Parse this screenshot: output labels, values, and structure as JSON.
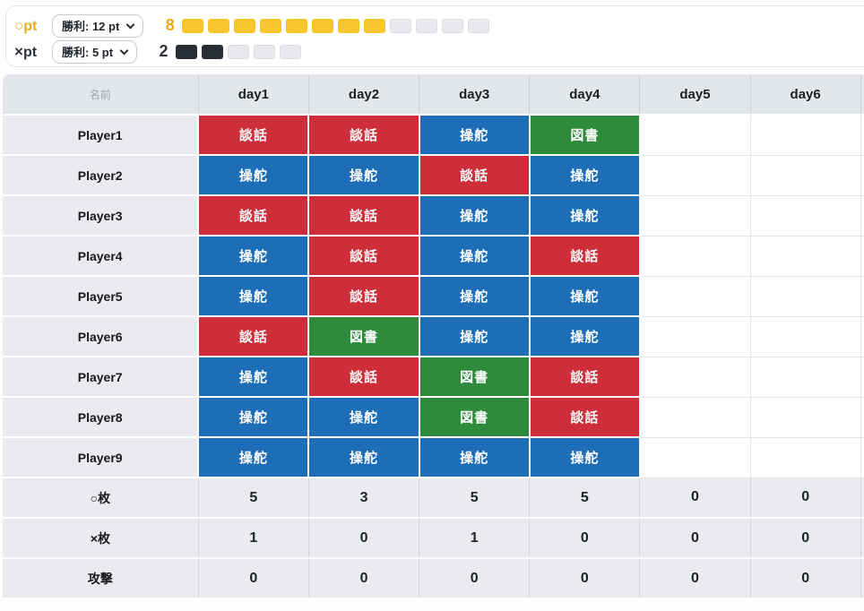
{
  "points_panel": {
    "rows": [
      {
        "symbol": "○",
        "label": "pt",
        "symbol_color": "#e9ab19",
        "select_value": "勝利: 12 pt",
        "count": "8",
        "count_color": "#e9ab19",
        "total": 12,
        "filled": 8,
        "filled_color": "#f6c62c"
      },
      {
        "symbol": "×",
        "label": "pt",
        "symbol_color": "#2c3238",
        "select_value": "勝利: 5 pt",
        "count": "2",
        "count_color": "#2c3238",
        "total": 5,
        "filled": 2,
        "filled_color": "#272e35"
      }
    ]
  },
  "colors": {
    "red": "#cd2e3a",
    "blue": "#1d6eb7",
    "green": "#2e8b3c"
  },
  "table": {
    "name_header": "名前",
    "day_headers": [
      "day1",
      "day2",
      "day3",
      "day4",
      "day5",
      "day6"
    ],
    "players": [
      {
        "name": "Player1",
        "cells": [
          {
            "label": "談話",
            "type": "red"
          },
          {
            "label": "談話",
            "type": "red"
          },
          {
            "label": "操舵",
            "type": "blue"
          },
          {
            "label": "図書",
            "type": "green"
          }
        ]
      },
      {
        "name": "Player2",
        "cells": [
          {
            "label": "操舵",
            "type": "blue"
          },
          {
            "label": "操舵",
            "type": "blue"
          },
          {
            "label": "談話",
            "type": "red"
          },
          {
            "label": "操舵",
            "type": "blue"
          }
        ]
      },
      {
        "name": "Player3",
        "cells": [
          {
            "label": "談話",
            "type": "red"
          },
          {
            "label": "談話",
            "type": "red"
          },
          {
            "label": "操舵",
            "type": "blue"
          },
          {
            "label": "操舵",
            "type": "blue"
          }
        ]
      },
      {
        "name": "Player4",
        "cells": [
          {
            "label": "操舵",
            "type": "blue"
          },
          {
            "label": "談話",
            "type": "red"
          },
          {
            "label": "操舵",
            "type": "blue"
          },
          {
            "label": "談話",
            "type": "red"
          }
        ]
      },
      {
        "name": "Player5",
        "cells": [
          {
            "label": "操舵",
            "type": "blue"
          },
          {
            "label": "談話",
            "type": "red"
          },
          {
            "label": "操舵",
            "type": "blue"
          },
          {
            "label": "操舵",
            "type": "blue"
          }
        ]
      },
      {
        "name": "Player6",
        "cells": [
          {
            "label": "談話",
            "type": "red"
          },
          {
            "label": "図書",
            "type": "green"
          },
          {
            "label": "操舵",
            "type": "blue"
          },
          {
            "label": "操舵",
            "type": "blue"
          }
        ]
      },
      {
        "name": "Player7",
        "cells": [
          {
            "label": "操舵",
            "type": "blue"
          },
          {
            "label": "談話",
            "type": "red"
          },
          {
            "label": "図書",
            "type": "green"
          },
          {
            "label": "談話",
            "type": "red"
          }
        ]
      },
      {
        "name": "Player8",
        "cells": [
          {
            "label": "操舵",
            "type": "blue"
          },
          {
            "label": "操舵",
            "type": "blue"
          },
          {
            "label": "図書",
            "type": "green"
          },
          {
            "label": "談話",
            "type": "red"
          }
        ]
      },
      {
        "name": "Player9",
        "cells": [
          {
            "label": "操舵",
            "type": "blue"
          },
          {
            "label": "操舵",
            "type": "blue"
          },
          {
            "label": "操舵",
            "type": "blue"
          },
          {
            "label": "操舵",
            "type": "blue"
          }
        ]
      }
    ],
    "summary": [
      {
        "label": "○枚",
        "values": [
          "5",
          "3",
          "5",
          "5",
          "0",
          "0"
        ]
      },
      {
        "label": "×枚",
        "values": [
          "1",
          "0",
          "1",
          "0",
          "0",
          "0"
        ]
      },
      {
        "label": "攻撃",
        "values": [
          "0",
          "0",
          "0",
          "0",
          "0",
          "0"
        ]
      }
    ]
  }
}
